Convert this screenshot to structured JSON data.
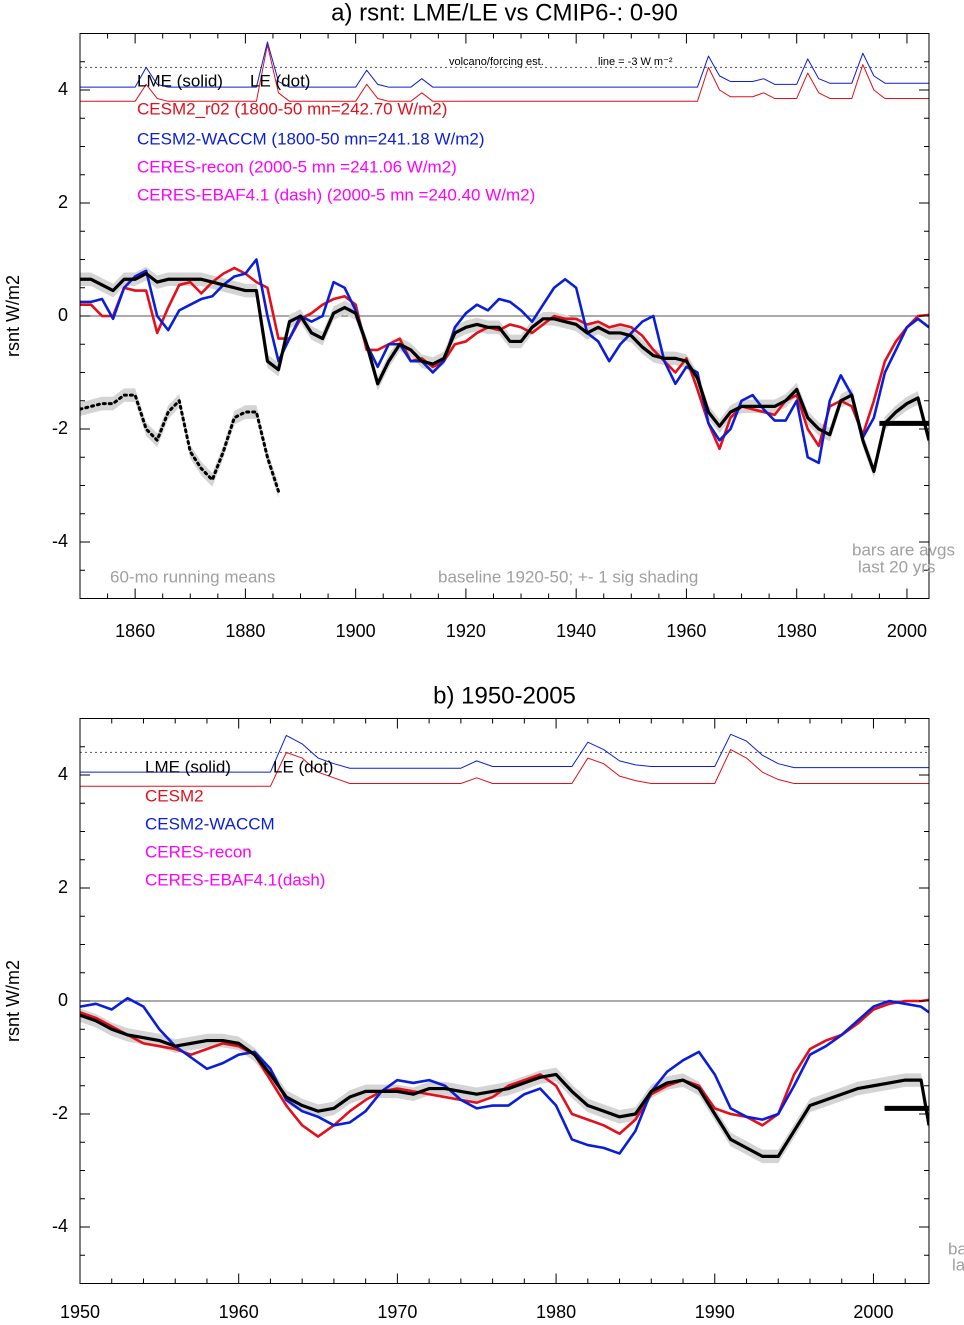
{
  "chart_data": [
    {
      "type": "line",
      "title": "a) rsnt: LME/LE vs CMIP6-: 0-90",
      "y_label": "rsnt W/m2",
      "xlim": [
        1850,
        2004
      ],
      "ylim": [
        -5,
        5
      ],
      "xticks": [
        1860,
        1880,
        1900,
        1920,
        1940,
        1960,
        1980,
        2000
      ],
      "yticks": [
        -4,
        -2,
        0,
        2,
        4
      ],
      "x": [
        1850,
        1852,
        1854,
        1856,
        1858,
        1860,
        1862,
        1864,
        1866,
        1868,
        1870,
        1872,
        1874,
        1876,
        1878,
        1880,
        1882,
        1884,
        1886,
        1888,
        1890,
        1892,
        1894,
        1896,
        1898,
        1900,
        1902,
        1904,
        1906,
        1908,
        1910,
        1912,
        1914,
        1916,
        1918,
        1920,
        1922,
        1924,
        1926,
        1928,
        1930,
        1932,
        1934,
        1936,
        1938,
        1940,
        1942,
        1944,
        1946,
        1948,
        1950,
        1952,
        1954,
        1956,
        1958,
        1960,
        1962,
        1964,
        1966,
        1968,
        1970,
        1972,
        1974,
        1976,
        1978,
        1980,
        1982,
        1984,
        1986,
        1988,
        1990,
        1992,
        1994,
        1996,
        1998,
        2000,
        2002,
        2004
      ],
      "series": [
        {
          "name": "CESM2_r02 (1800-50 mn=242.70 W/m2)",
          "color": "#e3101c",
          "style": "solid",
          "values": [
            0.2,
            0.2,
            0.0,
            0.0,
            0.5,
            0.45,
            0.45,
            -0.3,
            0.15,
            0.55,
            0.6,
            0.4,
            0.6,
            0.75,
            0.85,
            0.75,
            0.6,
            0.5,
            -0.4,
            -0.4,
            -0.05,
            0.05,
            0.2,
            0.3,
            0.35,
            0.2,
            -0.6,
            -0.6,
            -0.5,
            -0.4,
            -0.8,
            -0.75,
            -0.9,
            -0.8,
            -0.5,
            -0.45,
            -0.3,
            -0.2,
            -0.25,
            -0.15,
            -0.2,
            -0.3,
            -0.15,
            0.0,
            -0.05,
            -0.05,
            -0.15,
            -0.1,
            -0.2,
            -0.15,
            -0.2,
            -0.35,
            -0.6,
            -0.8,
            -1.0,
            -0.75,
            -1.3,
            -1.9,
            -2.35,
            -1.8,
            -1.6,
            -1.65,
            -1.7,
            -1.75,
            -1.5,
            -1.4,
            -2.0,
            -2.3,
            -1.6,
            -1.5,
            -1.6,
            -2.1,
            -1.5,
            -0.8,
            -0.45,
            -0.2,
            0.0,
            0.02
          ]
        },
        {
          "name": "CESM2-WACCM (1800-50 mn=241.18 W/m2)",
          "color": "#0a1ed8",
          "style": "solid",
          "values": [
            0.25,
            0.25,
            0.3,
            -0.05,
            0.5,
            0.7,
            0.8,
            0.0,
            -0.25,
            0.1,
            0.2,
            0.3,
            0.35,
            0.55,
            0.7,
            0.75,
            1.0,
            0.0,
            -0.8,
            -0.4,
            0.0,
            -0.1,
            0.0,
            0.6,
            0.5,
            0.1,
            -0.5,
            -0.9,
            -0.5,
            -0.5,
            -0.8,
            -0.8,
            -1.0,
            -0.8,
            -0.2,
            0.05,
            0.2,
            0.1,
            0.3,
            0.25,
            0.1,
            -0.1,
            0.2,
            0.5,
            0.65,
            0.5,
            -0.3,
            -0.45,
            -0.8,
            -0.5,
            -0.3,
            -0.1,
            0.0,
            -0.8,
            -1.2,
            -0.9,
            -1.0,
            -1.9,
            -2.2,
            -2.0,
            -1.5,
            -1.4,
            -1.65,
            -1.85,
            -1.85,
            -1.5,
            -2.5,
            -2.6,
            -1.5,
            -1.05,
            -1.4,
            -2.15,
            -1.8,
            -1.0,
            -0.6,
            -0.2,
            -0.05,
            -0.2
          ]
        },
        {
          "name": "LME (solid)",
          "color": "#000000",
          "style": "solid",
          "shaded": true,
          "values": [
            0.65,
            0.65,
            0.55,
            0.45,
            0.65,
            0.65,
            0.75,
            0.6,
            0.65,
            0.65,
            0.65,
            0.65,
            0.6,
            0.55,
            0.5,
            0.45,
            0.45,
            -0.8,
            -0.95,
            -0.1,
            0.0,
            -0.3,
            -0.4,
            0.05,
            0.15,
            0.05,
            -0.5,
            -1.2,
            -0.8,
            -0.5,
            -0.6,
            -0.8,
            -0.85,
            -0.75,
            -0.3,
            -0.2,
            -0.15,
            -0.2,
            -0.2,
            -0.45,
            -0.45,
            -0.2,
            -0.05,
            -0.05,
            -0.1,
            -0.15,
            -0.3,
            -0.2,
            -0.3,
            -0.3,
            -0.35,
            -0.55,
            -0.7,
            -0.75,
            -0.75,
            -0.8,
            -1.1,
            -1.7,
            -1.95,
            -1.7,
            -1.6,
            -1.6,
            -1.6,
            -1.6,
            -1.5,
            -1.3,
            -1.8,
            -2.0,
            -2.1,
            -1.5,
            -1.4,
            -2.2,
            -2.75,
            -1.9,
            -1.7,
            -1.55,
            -1.45,
            -2.2
          ]
        },
        {
          "name": "LE (dot)",
          "color": "#000000",
          "style": "dotted",
          "shaded": true,
          "values": [
            -1.65,
            -1.6,
            -1.55,
            -1.55,
            -1.4,
            -1.4,
            -2.0,
            -2.2,
            -1.7,
            -1.5,
            -2.4,
            -2.7,
            -2.9,
            -2.4,
            -1.8,
            -1.7,
            -1.7,
            -2.5,
            -3.1,
            null,
            null,
            null,
            null,
            null,
            null,
            null,
            null,
            null,
            null,
            null,
            null,
            null,
            null,
            null,
            null,
            null,
            null,
            null,
            null,
            null,
            null,
            null,
            null,
            null,
            null,
            null,
            null,
            null,
            null,
            null,
            null,
            null,
            null,
            null,
            null,
            null,
            null,
            null,
            null,
            null,
            null,
            null,
            null,
            null,
            null,
            null,
            null,
            null,
            null,
            null,
            null,
            null,
            null,
            null,
            null,
            null,
            null,
            null
          ]
        }
      ],
      "legend_extra": [
        {
          "text": "CERES-recon (2000-5 mn =241.06 W/m2)",
          "color": "#ff00ff"
        },
        {
          "text": "CERES-EBAF4.1 (dash) (2000-5 mn =240.40 W/m2)",
          "color": "#ff00ff"
        }
      ],
      "forcing_lines": [
        {
          "color": "#e3101c",
          "values": [
            3.8,
            3.8,
            3.8,
            3.8,
            3.8,
            3.8,
            4.1,
            3.85,
            3.8,
            3.8,
            3.8,
            3.8,
            3.8,
            3.8,
            3.8,
            3.8,
            3.8,
            4.8,
            3.95,
            3.8,
            3.8,
            3.8,
            3.8,
            3.8,
            3.8,
            3.8,
            4.1,
            3.85,
            3.8,
            3.8,
            3.8,
            3.95,
            3.8,
            3.8,
            3.8,
            3.8,
            3.8,
            3.8,
            3.8,
            3.8,
            3.8,
            3.8,
            3.8,
            3.8,
            3.8,
            3.8,
            3.8,
            3.8,
            3.8,
            3.8,
            3.8,
            3.8,
            3.8,
            3.8,
            3.8,
            3.8,
            3.8,
            4.4,
            4.0,
            3.88,
            3.88,
            3.88,
            3.95,
            3.85,
            3.85,
            3.85,
            4.3,
            3.95,
            3.85,
            3.85,
            3.85,
            4.45,
            4.0,
            3.85,
            3.85,
            3.85,
            3.85,
            3.85
          ]
        },
        {
          "color": "#0a1ed8",
          "values": [
            4.05,
            4.05,
            4.05,
            4.05,
            4.05,
            4.05,
            4.4,
            4.1,
            4.05,
            4.05,
            4.05,
            4.05,
            4.05,
            4.05,
            4.05,
            4.05,
            4.05,
            4.85,
            4.15,
            4.05,
            4.05,
            4.05,
            4.05,
            4.05,
            4.05,
            4.05,
            4.35,
            4.1,
            4.05,
            4.05,
            4.05,
            4.2,
            4.05,
            4.05,
            4.05,
            4.05,
            4.05,
            4.05,
            4.05,
            4.05,
            4.05,
            4.05,
            4.05,
            4.05,
            4.05,
            4.05,
            4.05,
            4.05,
            4.05,
            4.05,
            4.05,
            4.05,
            4.05,
            4.05,
            4.05,
            4.05,
            4.05,
            4.6,
            4.25,
            4.15,
            4.15,
            4.15,
            4.2,
            4.1,
            4.1,
            4.1,
            4.55,
            4.2,
            4.12,
            4.12,
            4.12,
            4.65,
            4.25,
            4.12,
            4.12,
            4.12,
            4.12,
            4.12
          ]
        }
      ],
      "ref_line": 4.4,
      "hline": 0,
      "shading_sigma": 0.12,
      "bar": {
        "x": [
          1995,
          2004
        ],
        "value": -1.9,
        "color": "#000000"
      },
      "annotations": [
        "volcano/forcing est.",
        "line = -3 W m⁻²",
        "60-mo running means",
        "baseline 1920-50; +- 1 sig shading",
        "bars are avgs",
        "last 20 yrs"
      ]
    },
    {
      "type": "line",
      "title": "b) 1950-2005",
      "y_label": "rsnt W/m2",
      "xlim": [
        1950,
        2003.5
      ],
      "ylim": [
        -5,
        5
      ],
      "xticks": [
        1950,
        1960,
        1970,
        1980,
        1990,
        2000
      ],
      "yticks": [
        -4,
        -2,
        0,
        2,
        4
      ],
      "x": [
        1950,
        1951,
        1952,
        1953,
        1954,
        1955,
        1956,
        1957,
        1958,
        1959,
        1960,
        1961,
        1962,
        1963,
        1964,
        1965,
        1966,
        1967,
        1968,
        1969,
        1970,
        1971,
        1972,
        1973,
        1974,
        1975,
        1976,
        1977,
        1978,
        1979,
        1980,
        1981,
        1982,
        1983,
        1984,
        1985,
        1986,
        1987,
        1988,
        1989,
        1990,
        1991,
        1992,
        1993,
        1994,
        1995,
        1996,
        1997,
        1998,
        1999,
        2000,
        2001,
        2002,
        2003,
        2003.5
      ],
      "series": [
        {
          "name": "CESM2",
          "color": "#e3101c",
          "style": "solid",
          "values": [
            -0.2,
            -0.3,
            -0.45,
            -0.6,
            -0.75,
            -0.8,
            -0.85,
            -0.95,
            -0.85,
            -0.75,
            -0.8,
            -0.95,
            -1.4,
            -1.85,
            -2.2,
            -2.4,
            -2.2,
            -1.95,
            -1.75,
            -1.6,
            -1.55,
            -1.6,
            -1.65,
            -1.7,
            -1.75,
            -1.8,
            -1.7,
            -1.5,
            -1.4,
            -1.3,
            -1.5,
            -2.0,
            -2.1,
            -2.2,
            -2.35,
            -2.1,
            -1.65,
            -1.5,
            -1.4,
            -1.5,
            -1.9,
            -2.0,
            -2.05,
            -2.2,
            -2.0,
            -1.3,
            -0.85,
            -0.7,
            -0.6,
            -0.4,
            -0.15,
            -0.05,
            0.0,
            0.0,
            0.02
          ]
        },
        {
          "name": "CESM2-WACCM",
          "color": "#0a1ed8",
          "style": "solid",
          "values": [
            -0.1,
            -0.05,
            -0.15,
            0.05,
            -0.1,
            -0.5,
            -0.8,
            -1.0,
            -1.2,
            -1.1,
            -0.95,
            -0.9,
            -1.2,
            -1.75,
            -1.95,
            -2.05,
            -2.2,
            -2.15,
            -1.95,
            -1.6,
            -1.4,
            -1.45,
            -1.4,
            -1.5,
            -1.75,
            -1.9,
            -1.85,
            -1.85,
            -1.65,
            -1.55,
            -1.85,
            -2.45,
            -2.55,
            -2.6,
            -2.7,
            -2.3,
            -1.6,
            -1.25,
            -1.05,
            -0.9,
            -1.3,
            -1.9,
            -2.05,
            -2.1,
            -2.0,
            -1.5,
            -0.95,
            -0.8,
            -0.6,
            -0.35,
            -0.1,
            0.0,
            -0.05,
            -0.1,
            -0.2
          ]
        },
        {
          "name": "LME (solid)",
          "color": "#000000",
          "style": "solid",
          "shaded": true,
          "values": [
            -0.25,
            -0.35,
            -0.5,
            -0.6,
            -0.65,
            -0.7,
            -0.8,
            -0.75,
            -0.7,
            -0.7,
            -0.75,
            -0.95,
            -1.3,
            -1.7,
            -1.85,
            -1.95,
            -1.9,
            -1.7,
            -1.6,
            -1.6,
            -1.6,
            -1.65,
            -1.55,
            -1.55,
            -1.6,
            -1.65,
            -1.6,
            -1.55,
            -1.45,
            -1.35,
            -1.3,
            -1.6,
            -1.85,
            -1.95,
            -2.05,
            -2.0,
            -1.6,
            -1.45,
            -1.4,
            -1.55,
            -2.0,
            -2.45,
            -2.6,
            -2.75,
            -2.75,
            -2.3,
            -1.85,
            -1.75,
            -1.65,
            -1.55,
            -1.5,
            -1.45,
            -1.4,
            -1.4,
            -2.2
          ]
        }
      ],
      "legend_extra": [
        {
          "text": "LE (dot)",
          "color": "#000000"
        },
        {
          "text": "CERES-recon",
          "color": "#ff00ff"
        },
        {
          "text": "CERES-EBAF4.1(dash)",
          "color": "#ff00ff"
        }
      ],
      "forcing_lines": [
        {
          "color": "#e3101c",
          "values": [
            3.8,
            3.8,
            3.8,
            3.8,
            3.8,
            3.8,
            3.8,
            3.8,
            3.8,
            3.8,
            3.8,
            3.8,
            3.8,
            4.4,
            4.3,
            4.05,
            3.95,
            3.85,
            3.85,
            3.85,
            3.85,
            3.85,
            3.85,
            3.85,
            3.85,
            3.95,
            3.85,
            3.85,
            3.85,
            3.85,
            3.85,
            3.85,
            4.3,
            4.2,
            3.98,
            3.9,
            3.85,
            3.85,
            3.85,
            3.85,
            3.85,
            4.45,
            4.3,
            4.05,
            3.92,
            3.85,
            3.85,
            3.85,
            3.85,
            3.85,
            3.85,
            3.85,
            3.85,
            3.85,
            3.85
          ]
        },
        {
          "color": "#0a1ed8",
          "values": [
            4.05,
            4.05,
            4.05,
            4.05,
            4.05,
            4.05,
            4.05,
            4.05,
            4.05,
            4.05,
            4.05,
            4.05,
            4.05,
            4.7,
            4.55,
            4.3,
            4.2,
            4.12,
            4.12,
            4.12,
            4.12,
            4.12,
            4.12,
            4.12,
            4.12,
            4.25,
            4.15,
            4.15,
            4.15,
            4.15,
            4.15,
            4.15,
            4.58,
            4.45,
            4.25,
            4.18,
            4.15,
            4.15,
            4.15,
            4.15,
            4.15,
            4.72,
            4.6,
            4.35,
            4.2,
            4.13,
            4.13,
            4.13,
            4.13,
            4.13,
            4.13,
            4.13,
            4.13,
            4.13,
            4.13
          ]
        }
      ],
      "ref_line": 4.4,
      "hline": 0,
      "shading_sigma": 0.12,
      "bar": {
        "x": [
          2000.7,
          2003.5
        ],
        "value": -1.9,
        "color": "#000000"
      },
      "annotations": [
        "ba",
        "la"
      ]
    }
  ]
}
